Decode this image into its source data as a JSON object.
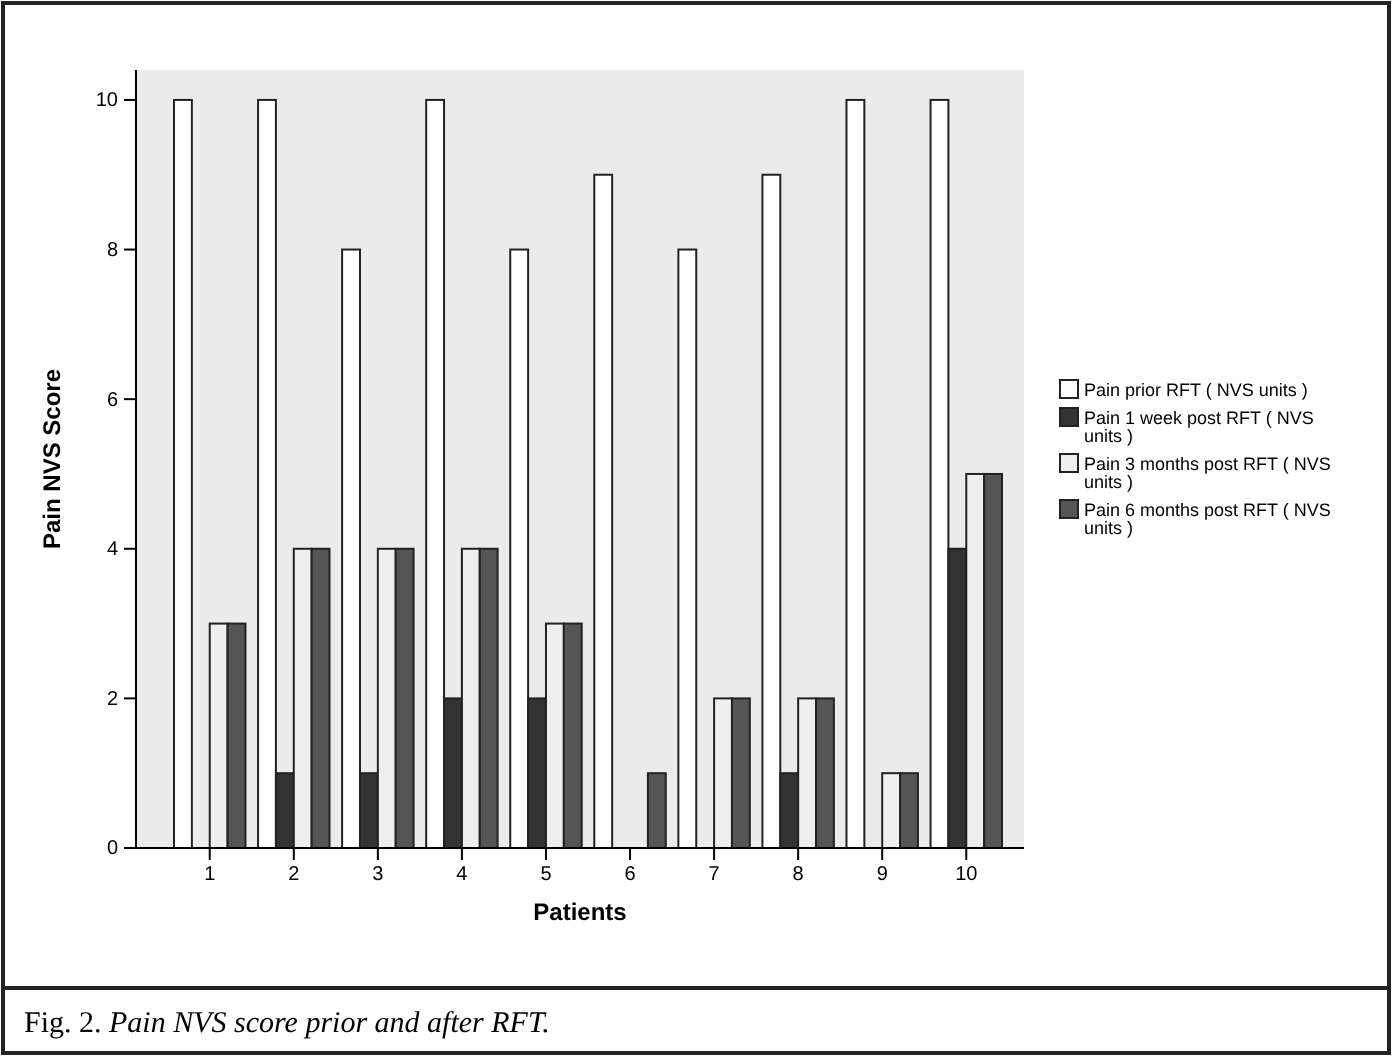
{
  "chart_data": {
    "type": "bar",
    "categories": [
      "1",
      "2",
      "3",
      "4",
      "5",
      "6",
      "7",
      "8",
      "9",
      "10"
    ],
    "series": [
      {
        "name": "Pain prior RFT ( NVS units )",
        "color": "#ffffff",
        "values": [
          10,
          10,
          8,
          10,
          8,
          9,
          8,
          9,
          10,
          10
        ]
      },
      {
        "name": "Pain 1 week post RFT ( NVS units )",
        "color": "#333333",
        "values": [
          0,
          1,
          1,
          2,
          2,
          0,
          0,
          1,
          0,
          4
        ]
      },
      {
        "name": "Pain 3 months post RFT ( NVS units )",
        "color": "#eeeeee",
        "values": [
          3,
          4,
          4,
          4,
          3,
          0,
          2,
          2,
          1,
          5
        ]
      },
      {
        "name": "Pain 6 months post RFT ( NVS units )",
        "color": "#555555",
        "values": [
          3,
          4,
          4,
          4,
          3,
          1,
          2,
          2,
          1,
          5
        ]
      }
    ],
    "xlabel": "Patients",
    "ylabel": "Pain NVS Score",
    "ylim": [
      0,
      10.4
    ],
    "yticks": [
      0,
      2,
      4,
      6,
      8,
      10
    ],
    "grid": false,
    "legend": "right",
    "annotations": [
      "Fig. 2. Pain NVS score prior and after RFT."
    ]
  }
}
